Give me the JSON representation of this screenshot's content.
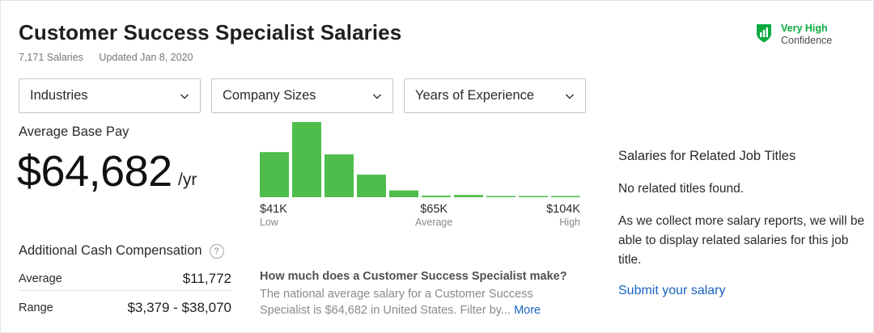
{
  "header": {
    "title": "Customer Success Specialist Salaries",
    "salary_count": "7,171 Salaries",
    "updated": "Updated Jan 8, 2020"
  },
  "confidence": {
    "level": "Very High",
    "label": "Confidence",
    "icon": "shield-chart-icon",
    "color": "#0caa41"
  },
  "filters": [
    {
      "label": "Industries",
      "icon": "chevron-down-icon"
    },
    {
      "label": "Company Sizes",
      "icon": "chevron-down-icon"
    },
    {
      "label": "Years of Experience",
      "icon": "chevron-down-icon"
    }
  ],
  "base_pay": {
    "label": "Average Base Pay",
    "value": "$64,682",
    "unit": "/yr"
  },
  "histogram": {
    "low_value": "$41K",
    "low_label": "Low",
    "avg_value": "$65K",
    "avg_label": "Average",
    "high_value": "$104K",
    "high_label": "High",
    "bar_color": "#4ebd4c"
  },
  "chart_data": {
    "type": "bar",
    "bins": 10,
    "x_range": [
      41000,
      104000
    ],
    "values": [
      0.6,
      1.0,
      0.57,
      0.3,
      0.09,
      0.02,
      0.03,
      0.015,
      0.015,
      0.015
    ],
    "title": "",
    "xlabel": "",
    "ylabel": ""
  },
  "additional_cash": {
    "title": "Additional Cash Compensation",
    "help_icon": "question-circle-icon",
    "help_glyph": "?",
    "average_label": "Average",
    "average_value": "$11,772",
    "range_label": "Range",
    "range_value": "$3,379 - $38,070"
  },
  "faq": {
    "question": "How much does a Customer Success Specialist make?",
    "answer": "The national average salary for a Customer Success Specialist is $64,682 in United States. Filter by...",
    "more": "More"
  },
  "related": {
    "title": "Salaries for Related Job Titles",
    "none": "No related titles found.",
    "description": "As we collect more salary reports, we will be able to display related salaries for this job title.",
    "submit": "Submit your salary"
  }
}
